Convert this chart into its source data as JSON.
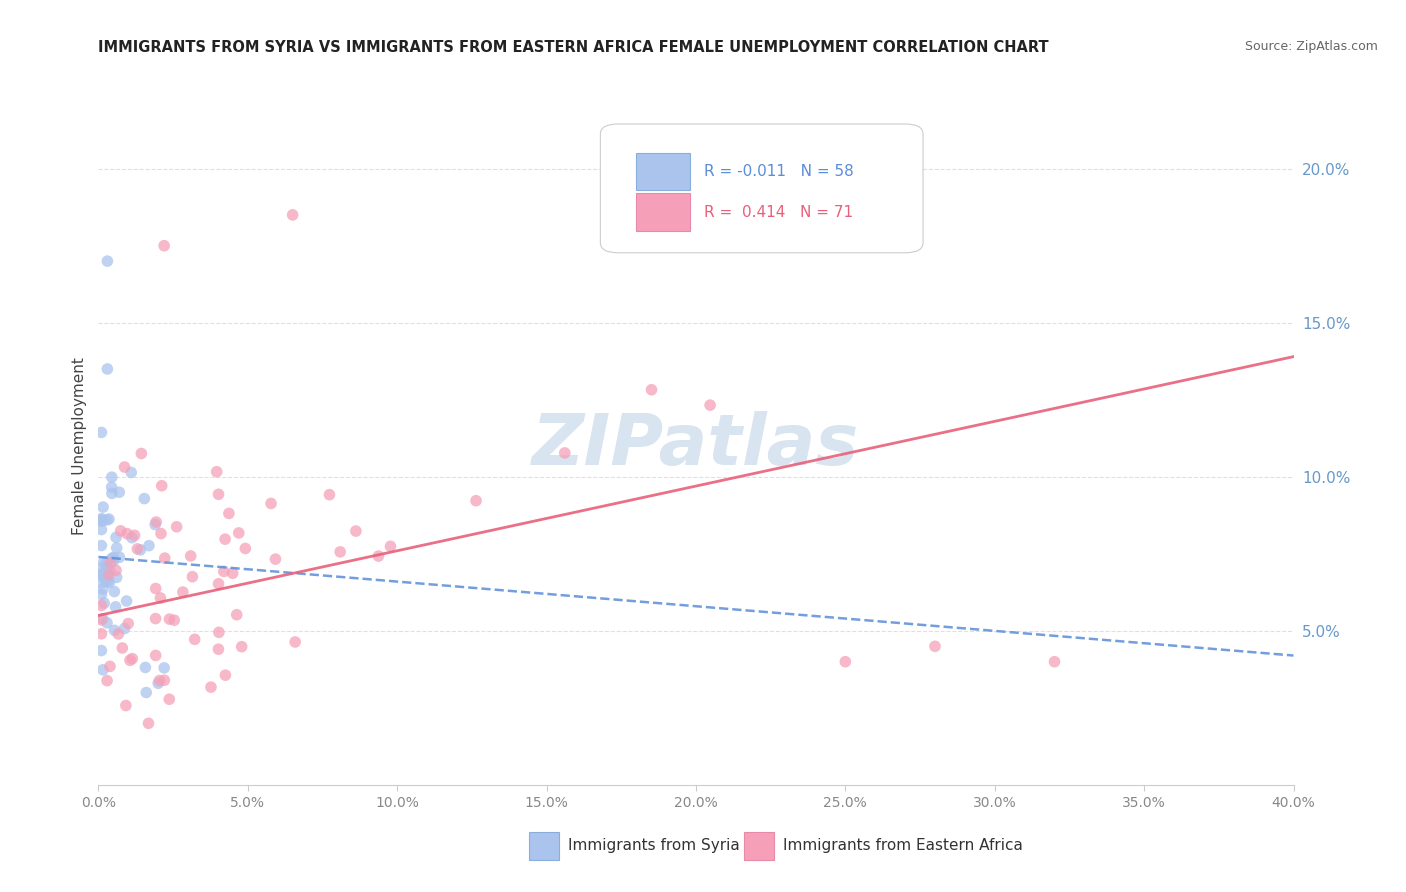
{
  "title": "IMMIGRANTS FROM SYRIA VS IMMIGRANTS FROM EASTERN AFRICA FEMALE UNEMPLOYMENT CORRELATION CHART",
  "source": "Source: ZipAtlas.com",
  "ylabel": "Female Unemployment",
  "xmin": 0.0,
  "xmax": 0.4,
  "ymin": 0.0,
  "ymax": 0.22,
  "ytick_vals": [
    0.05,
    0.1,
    0.15,
    0.2
  ],
  "xtick_vals": [
    0.0,
    0.05,
    0.1,
    0.15,
    0.2,
    0.25,
    0.3,
    0.35,
    0.4
  ],
  "legend1_r": "-0.011",
  "legend1_n": "58",
  "legend2_r": "0.414",
  "legend2_n": "71",
  "color_syria": "#aac4ee",
  "color_eastern": "#f5a0b8",
  "color_syria_line": "#5b8dd9",
  "color_eastern_line": "#e8607a",
  "watermark_text": "ZIPatlas",
  "watermark_color": "#d8e4f0",
  "legend_label_syria": "Immigrants from Syria",
  "legend_label_eastern": "Immigrants from Eastern Africa",
  "background_color": "#ffffff",
  "grid_color": "#e0e0e0",
  "right_tick_color": "#6699cc",
  "title_color": "#222222",
  "source_color": "#666666",
  "axis_label_color": "#444444",
  "bottom_tick_color": "#888888",
  "syria_intercept": 0.074,
  "syria_slope": -0.08,
  "eastern_intercept": 0.055,
  "eastern_slope": 0.21
}
